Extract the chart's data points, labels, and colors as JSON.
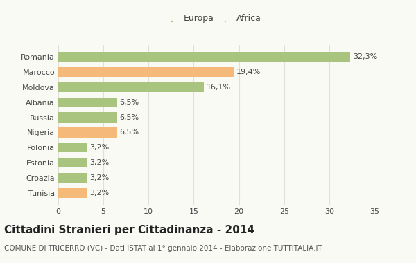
{
  "categories": [
    "Romania",
    "Marocco",
    "Moldova",
    "Albania",
    "Russia",
    "Nigeria",
    "Polonia",
    "Estonia",
    "Croazia",
    "Tunisia"
  ],
  "values": [
    32.3,
    19.4,
    16.1,
    6.5,
    6.5,
    6.5,
    3.2,
    3.2,
    3.2,
    3.2
  ],
  "labels": [
    "32,3%",
    "19,4%",
    "16,1%",
    "6,5%",
    "6,5%",
    "6,5%",
    "3,2%",
    "3,2%",
    "3,2%",
    "3,2%"
  ],
  "colors": [
    "#a8c47e",
    "#f5b97a",
    "#a8c47e",
    "#a8c47e",
    "#a8c47e",
    "#f5b97a",
    "#a8c47e",
    "#a8c47e",
    "#a8c47e",
    "#f5b97a"
  ],
  "europa_color": "#a8c47e",
  "africa_color": "#f5b97a",
  "title": "Cittadini Stranieri per Cittadinanza - 2014",
  "subtitle": "COMUNE DI TRICERRO (VC) - Dati ISTAT al 1° gennaio 2014 - Elaborazione TUTTITALIA.IT",
  "xlim": [
    0,
    35
  ],
  "xticks": [
    0,
    5,
    10,
    15,
    20,
    25,
    30,
    35
  ],
  "background_color": "#fafaf5",
  "grid_color": "#e0e0d6",
  "legend_labels": [
    "Europa",
    "Africa"
  ],
  "bar_label_fontsize": 8,
  "title_fontsize": 11,
  "subtitle_fontsize": 7.5,
  "tick_fontsize": 8,
  "ytick_fontsize": 8,
  "legend_fontsize": 9
}
